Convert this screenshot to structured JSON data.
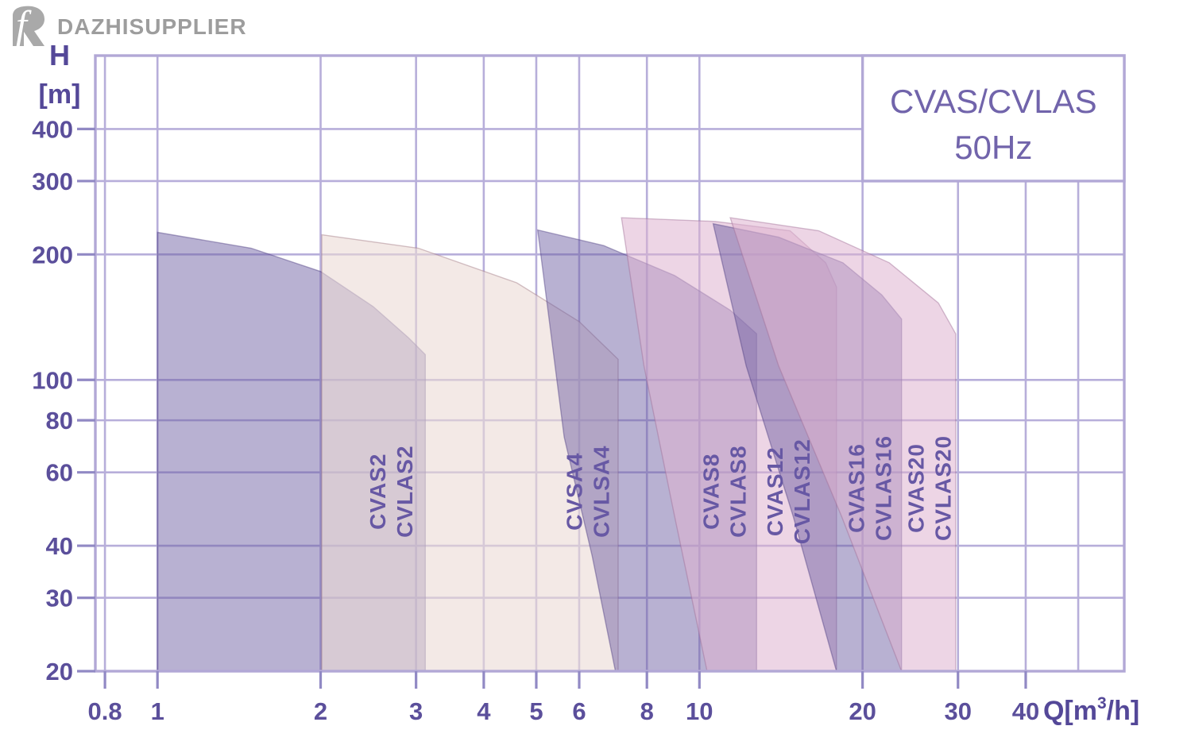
{
  "logo": {
    "text": "DAZHISUPPLIER",
    "mark": "fR-monogram"
  },
  "title": {
    "line1": "CVAS/CVLAS",
    "line2": "50Hz"
  },
  "axes": {
    "y": {
      "name": "H",
      "unit": "[m]",
      "scale": "log",
      "range": [
        20,
        600
      ],
      "ticks": [
        400,
        300,
        200,
        100,
        80,
        60,
        40,
        30,
        20
      ]
    },
    "x": {
      "unit_prefix": "Q[m",
      "unit_sup": "3",
      "unit_suffix": "/h]",
      "scale": "log",
      "range": [
        0.768,
        60.8
      ],
      "ticks": [
        0.8,
        1,
        2,
        3,
        4,
        5,
        6,
        8,
        10,
        20,
        30,
        40
      ],
      "unlabeled_gridlines": [
        50
      ]
    }
  },
  "colors": {
    "grid": "#b7aeda",
    "frame": "#b2a8d6",
    "tick_mark": "#9189c4",
    "tick_label": "#5b4f9b",
    "axis_label": "#544898",
    "title_text": "#7164ab",
    "region_label": "#6758a4",
    "title_box_fill": "#ffffff",
    "fills": {
      "purple": "rgba(106,92,160,0.48)",
      "cream": "rgba(235,219,214,0.60)",
      "pink": "rgba(222,178,208,0.55)"
    },
    "edges": {
      "purple": "rgba(80,65,130,0.45)",
      "cream": "rgba(160,120,130,0.45)",
      "pink": "rgba(160,110,150,0.45)"
    }
  },
  "chart_data": {
    "type": "area",
    "title": "CVAS/CVLAS 50Hz",
    "xlabel": "Q[m3/h]",
    "ylabel": "H [m]",
    "x_range": [
      0.768,
      60.8
    ],
    "y_range": [
      20,
      600
    ],
    "grid": true,
    "series": [
      {
        "labels": [
          "CVAS2",
          "CVLAS2"
        ],
        "fill": "purple",
        "q_min": 1.0,
        "q_max": 3.12,
        "h_max": 226,
        "h_min": 20,
        "envelope_qh": [
          [
            1,
            20
          ],
          [
            1,
            226
          ],
          [
            1.49,
            207
          ],
          [
            2.0,
            182
          ],
          [
            2.5,
            150
          ],
          [
            2.91,
            126
          ],
          [
            3.12,
            115
          ],
          [
            3.12,
            20
          ]
        ],
        "label_q": 2.72,
        "label_h": 54
      },
      {
        "labels": [
          "CVSA4",
          "CVLSA4"
        ],
        "fill": "cream",
        "q_min": 2.01,
        "q_max": 7.08,
        "h_max": 223,
        "h_min": 20,
        "envelope_qh": [
          [
            2.01,
            20
          ],
          [
            2.01,
            223
          ],
          [
            3.03,
            207
          ],
          [
            4.6,
            171
          ],
          [
            6.0,
            138
          ],
          [
            7.08,
            112
          ],
          [
            7.08,
            20
          ]
        ],
        "label_q": 6.27,
        "label_h": 54
      },
      {
        "labels": [
          "CVAS8",
          "CVLAS8"
        ],
        "fill": "purple",
        "q_min": 5.03,
        "q_max": 12.75,
        "h_max": 229,
        "h_min": 20,
        "envelope_qh": [
          [
            7.0,
            20
          ],
          [
            6.34,
            37.8
          ],
          [
            5.63,
            72.9
          ],
          [
            5.03,
            229
          ],
          [
            6.66,
            210
          ],
          [
            9.0,
            178
          ],
          [
            11.4,
            147
          ],
          [
            12.75,
            129
          ],
          [
            12.75,
            20
          ]
        ],
        "label_q": 11.2,
        "label_h": 54
      },
      {
        "labels": [
          "CVAS12",
          "CVLAS12"
        ],
        "fill": "pink",
        "q_min": 7.18,
        "q_max": 17.9,
        "h_max": 245,
        "h_min": 20,
        "envelope_qh": [
          [
            10.33,
            20
          ],
          [
            9.0,
            47
          ],
          [
            7.9,
            108
          ],
          [
            7.18,
            245
          ],
          [
            10.7,
            240
          ],
          [
            14.7,
            228
          ],
          [
            17.1,
            191
          ],
          [
            17.9,
            167
          ],
          [
            17.9,
            20
          ]
        ],
        "label_q": 14.7,
        "label_h": 54
      },
      {
        "labels": [
          "CVAS16",
          "CVLAS16"
        ],
        "fill": "purple",
        "q_min": 10.6,
        "q_max": 23.6,
        "h_max": 237,
        "h_min": 20,
        "envelope_qh": [
          [
            17.9,
            20
          ],
          [
            14.9,
            47
          ],
          [
            12.2,
            108
          ],
          [
            10.6,
            237
          ],
          [
            14.0,
            220
          ],
          [
            18.4,
            191
          ],
          [
            21.7,
            160
          ],
          [
            23.6,
            140
          ],
          [
            23.6,
            20
          ]
        ],
        "label_q": 20.8,
        "label_h": 55
      },
      {
        "labels": [
          "CVAS20",
          "CVLAS20"
        ],
        "fill": "pink",
        "q_min": 11.4,
        "q_max": 29.7,
        "h_max": 245,
        "h_min": 20,
        "envelope_qh": [
          [
            23.6,
            20
          ],
          [
            18.3,
            47
          ],
          [
            14.0,
            108
          ],
          [
            11.4,
            245
          ],
          [
            16.6,
            228
          ],
          [
            22.4,
            191
          ],
          [
            27.6,
            153
          ],
          [
            29.7,
            129
          ],
          [
            29.7,
            20
          ]
        ],
        "label_q": 26.8,
        "label_h": 55
      }
    ]
  }
}
